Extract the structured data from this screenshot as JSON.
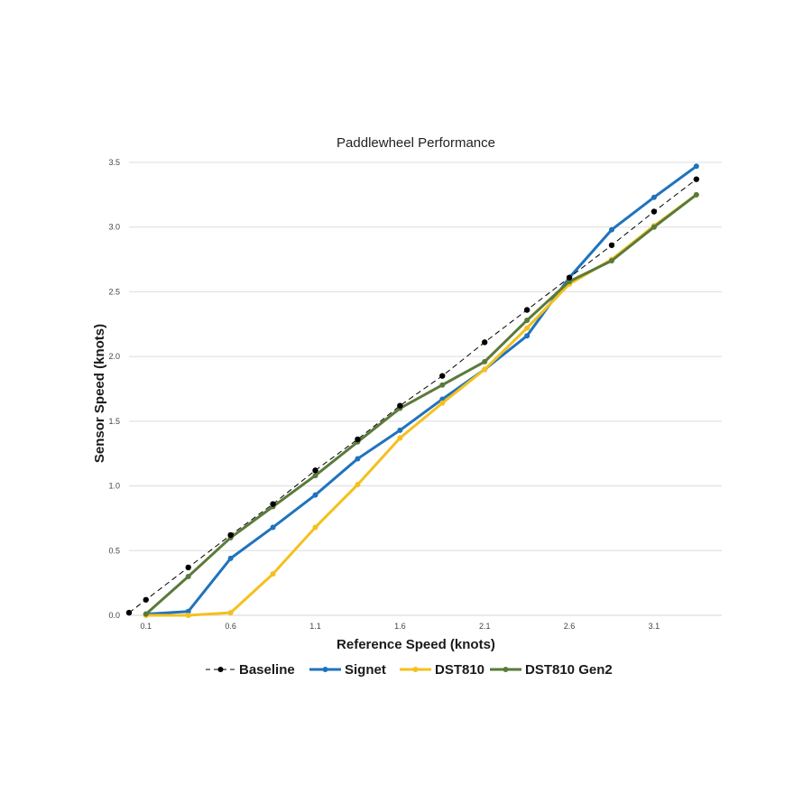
{
  "chart_data": {
    "type": "line",
    "title": "Paddlewheel Performance",
    "xlabel": "Reference Speed (knots)",
    "ylabel": "Sensor Speed (knots)",
    "xlim": [
      0.0,
      3.5
    ],
    "ylim": [
      0,
      3.5
    ],
    "x_ticks": [
      "0.1",
      "0.6",
      "1.1",
      "1.6",
      "2.1",
      "2.6",
      "3.1"
    ],
    "x_tick_values": [
      0.1,
      0.6,
      1.1,
      1.6,
      2.1,
      2.6,
      3.1
    ],
    "y_ticks": [
      "0.0",
      "0.5",
      "1.0",
      "1.5",
      "2.0",
      "2.5",
      "3.0",
      "3.5"
    ],
    "y_tick_values": [
      0,
      0.5,
      1.0,
      1.5,
      2.0,
      2.5,
      3.0,
      3.5
    ],
    "grid": "horizontal",
    "legend_position": "bottom",
    "series": [
      {
        "name": "Baseline",
        "color": "#000000",
        "dashed": true,
        "x": [
          0.0,
          0.1,
          0.35,
          0.6,
          0.85,
          1.1,
          1.35,
          1.6,
          1.85,
          2.1,
          2.35,
          2.6,
          2.85,
          3.1,
          3.35
        ],
        "y": [
          0.02,
          0.12,
          0.37,
          0.62,
          0.86,
          1.12,
          1.36,
          1.62,
          1.85,
          2.11,
          2.36,
          2.61,
          2.86,
          3.12,
          3.37
        ]
      },
      {
        "name": "Signet",
        "color": "#1f73bd",
        "dashed": false,
        "x": [
          0.1,
          0.35,
          0.6,
          0.85,
          1.1,
          1.35,
          1.6,
          1.85,
          2.1,
          2.35,
          2.6,
          2.85,
          3.1,
          3.35
        ],
        "y": [
          0.01,
          0.03,
          0.44,
          0.68,
          0.93,
          1.21,
          1.43,
          1.67,
          1.9,
          2.16,
          2.61,
          2.98,
          3.23,
          3.47
        ]
      },
      {
        "name": "DST810",
        "color": "#f5c01d",
        "dashed": false,
        "x": [
          0.1,
          0.35,
          0.6,
          0.85,
          1.1,
          1.35,
          1.6,
          1.85,
          2.1,
          2.35,
          2.6,
          2.85,
          3.1,
          3.35
        ],
        "y": [
          0.0,
          0.0,
          0.02,
          0.32,
          0.68,
          1.01,
          1.37,
          1.64,
          1.9,
          2.22,
          2.56,
          2.75,
          3.01,
          3.25
        ]
      },
      {
        "name": "DST810 Gen2",
        "color": "#5a7a3a",
        "dashed": false,
        "x": [
          0.1,
          0.35,
          0.6,
          0.85,
          1.1,
          1.35,
          1.6,
          1.85,
          2.1,
          2.35,
          2.6,
          2.85,
          3.1,
          3.35
        ],
        "y": [
          0.01,
          0.3,
          0.6,
          0.84,
          1.08,
          1.34,
          1.6,
          1.78,
          1.96,
          2.28,
          2.58,
          2.74,
          3.0,
          3.25
        ]
      }
    ]
  }
}
